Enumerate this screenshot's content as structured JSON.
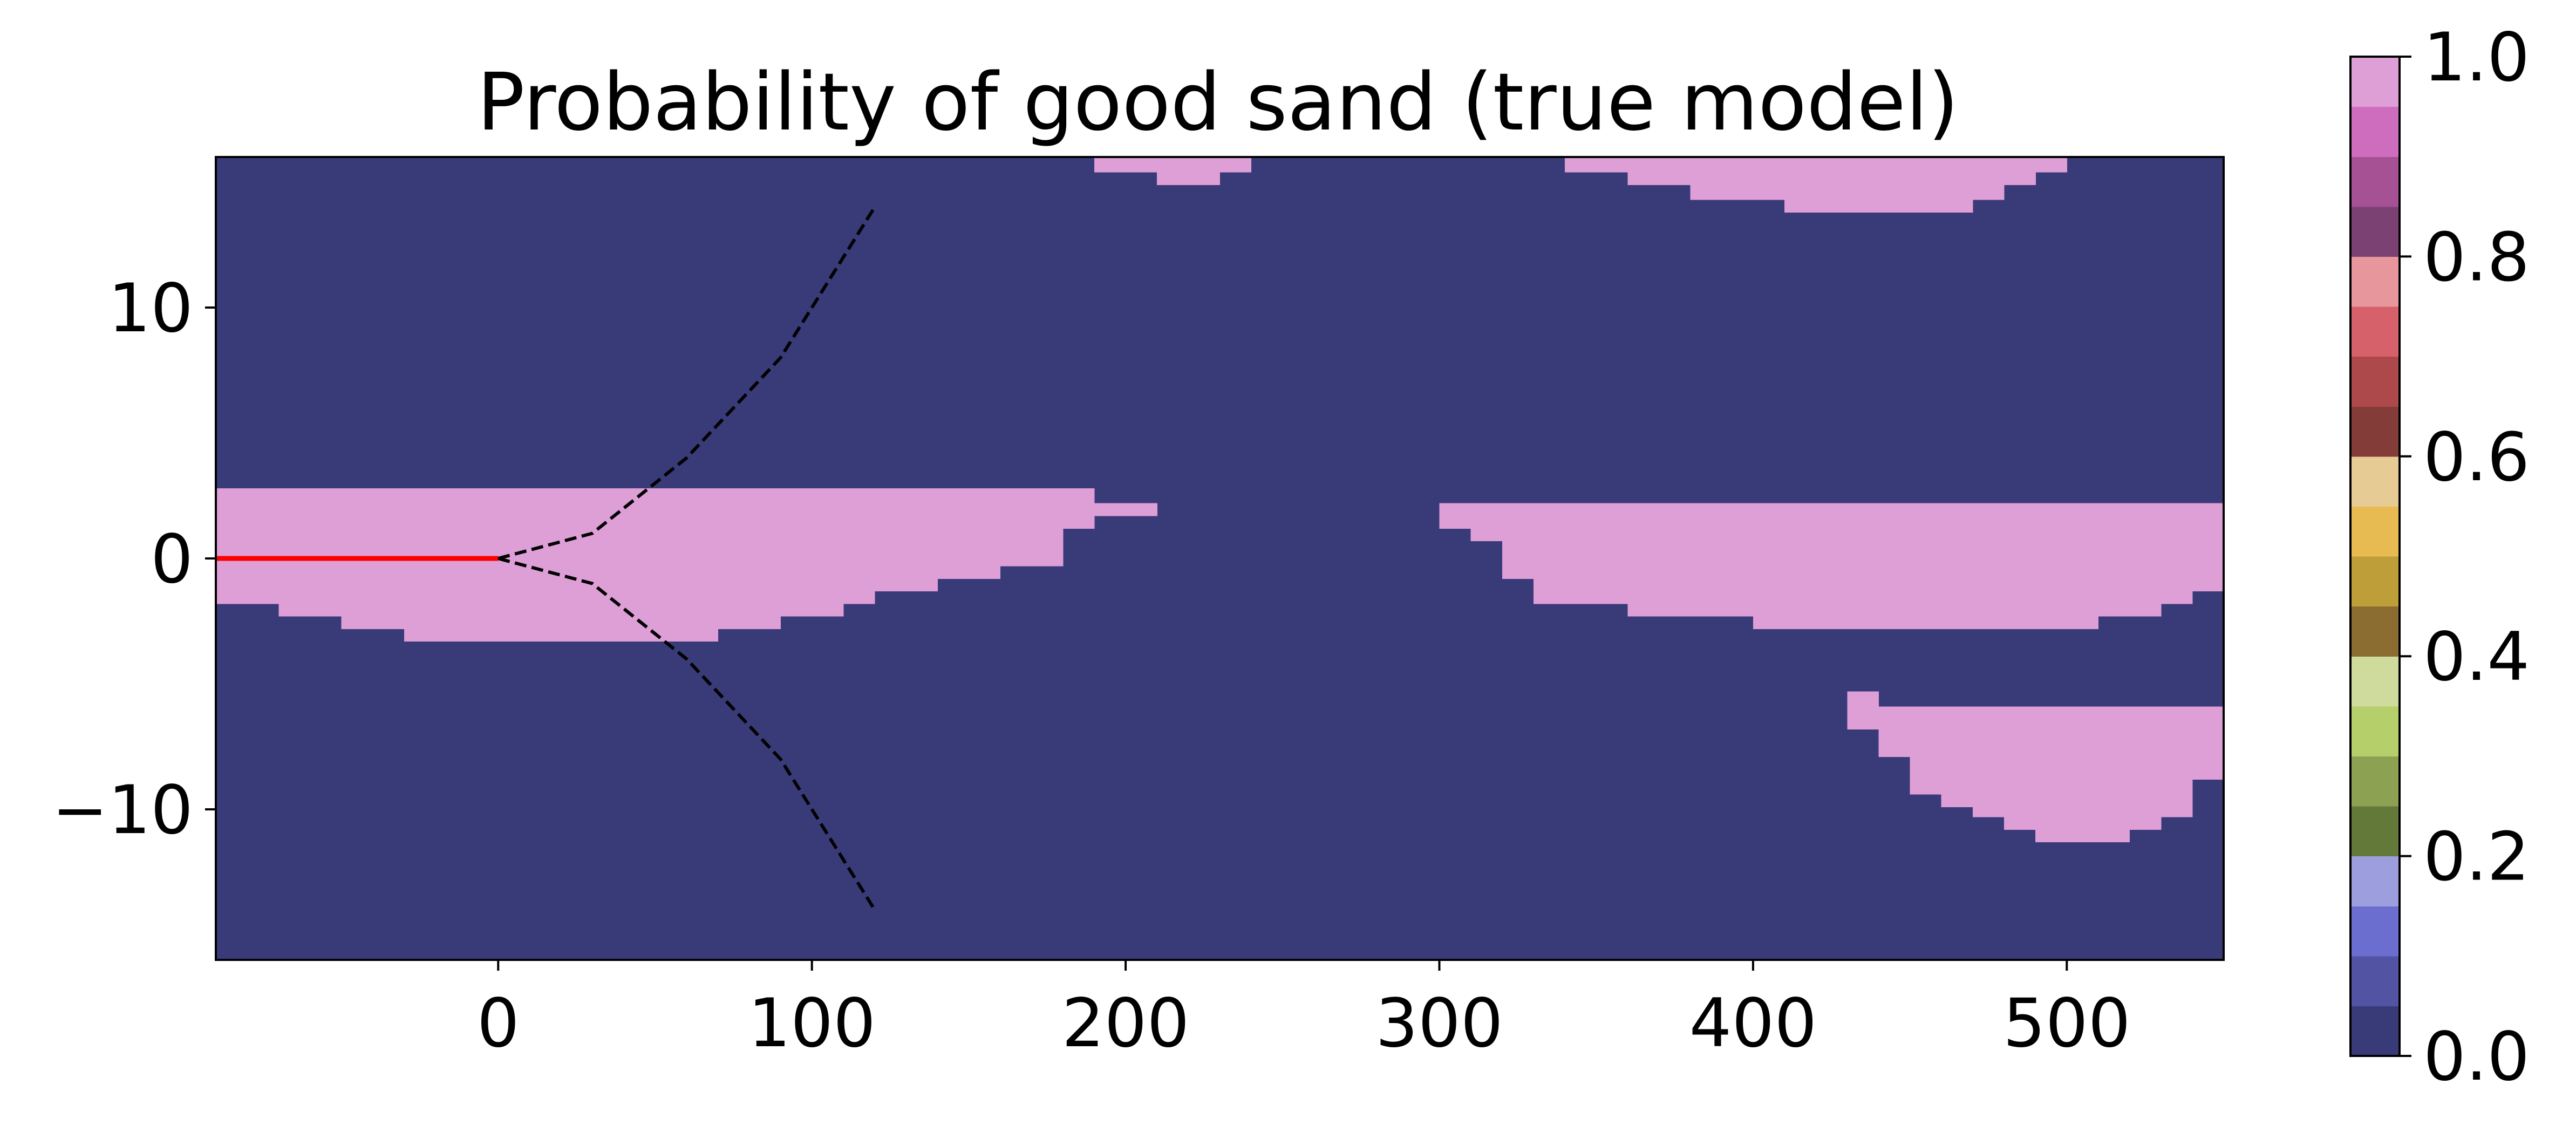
{
  "chart_data": {
    "type": "heatmap",
    "title": "Probability of good sand (true model)",
    "xlabel": "",
    "ylabel": "",
    "xlim": [
      -90,
      550
    ],
    "ylim": [
      -16,
      16
    ],
    "x_ticks": [
      0,
      100,
      200,
      300,
      400,
      500
    ],
    "x_tick_labels": [
      "0",
      "100",
      "200",
      "300",
      "400",
      "500"
    ],
    "y_ticks": [
      10,
      0,
      -10
    ],
    "y_tick_labels": [
      "10",
      "0",
      "−10"
    ],
    "grid": false,
    "background_value": 0.0,
    "background_color": "#393b79",
    "good_sand_value": 1.0,
    "good_sand_color": "#de9ed6",
    "colormap": "tab20b",
    "colormap_colors": [
      "#393b79",
      "#5254a3",
      "#6b6ecf",
      "#9c9ede",
      "#637939",
      "#8ca252",
      "#b5cf6b",
      "#cedb9c",
      "#8c6d31",
      "#bd9e39",
      "#e7ba52",
      "#e7cb94",
      "#843c39",
      "#ad494a",
      "#d6616b",
      "#e7969c",
      "#7b4173",
      "#a55194",
      "#ce6dbd",
      "#de9ed6"
    ],
    "colorbar_range": [
      0.0,
      1.0
    ],
    "colorbar_ticks": [
      0.0,
      0.2,
      0.4,
      0.6,
      0.8,
      1.0
    ],
    "colorbar_tick_labels": [
      "0.0",
      "0.2",
      "0.4",
      "0.6",
      "0.8",
      "1.0"
    ],
    "regions": [
      {
        "name": "left-sand-body",
        "value": 1.0,
        "x_start": -90,
        "x_end": 210,
        "upper_steps": [
          [
            -90,
            200,
            2.8
          ],
          [
            200,
            210,
            2.2
          ]
        ],
        "lower_steps": [
          [
            -90,
            -70,
            -1.8
          ],
          [
            -70,
            -50,
            -2.3
          ],
          [
            -50,
            -30,
            -2.8
          ],
          [
            -30,
            70,
            -3.3
          ],
          [
            70,
            90,
            -2.8
          ],
          [
            90,
            110,
            -2.3
          ],
          [
            110,
            120,
            -1.8
          ],
          [
            120,
            140,
            -1.3
          ],
          [
            140,
            160,
            -0.8
          ],
          [
            160,
            180,
            -0.3
          ],
          [
            180,
            190,
            1.2
          ],
          [
            190,
            210,
            1.7
          ]
        ]
      },
      {
        "name": "top-sand-small",
        "value": 1.0,
        "steps": [
          [
            190,
            210,
            15.4,
            16
          ],
          [
            210,
            230,
            14.9,
            16
          ],
          [
            230,
            240,
            15.4,
            16
          ]
        ]
      },
      {
        "name": "top-sand-large",
        "value": 1.0,
        "steps": [
          [
            340,
            360,
            15.4,
            16
          ],
          [
            360,
            380,
            14.9,
            16
          ],
          [
            380,
            410,
            14.3,
            16
          ],
          [
            410,
            470,
            13.8,
            16
          ],
          [
            470,
            480,
            14.3,
            16
          ],
          [
            480,
            490,
            14.9,
            16
          ],
          [
            490,
            500,
            15.4,
            16
          ]
        ]
      },
      {
        "name": "right-sand-body",
        "value": 1.0,
        "x_start": 300,
        "x_end": 550,
        "upper": 2.2,
        "lower_steps": [
          [
            300,
            310,
            1.2
          ],
          [
            310,
            320,
            0.7
          ],
          [
            320,
            330,
            -0.8
          ],
          [
            330,
            340,
            -1.8
          ],
          [
            340,
            360,
            -1.8
          ],
          [
            360,
            400,
            -2.3
          ],
          [
            400,
            510,
            -2.8
          ],
          [
            510,
            530,
            -2.3
          ],
          [
            530,
            540,
            -1.8
          ],
          [
            540,
            550,
            -1.3
          ]
        ]
      },
      {
        "name": "lower-right-sand-body",
        "value": 1.0,
        "steps": [
          [
            430,
            440,
            -6.8,
            -5.3
          ],
          [
            440,
            450,
            -7.9,
            -5.9
          ],
          [
            450,
            460,
            -9.4,
            -5.9
          ],
          [
            460,
            470,
            -9.9,
            -5.9
          ],
          [
            470,
            480,
            -10.3,
            -5.9
          ],
          [
            480,
            490,
            -10.8,
            -5.9
          ],
          [
            490,
            520,
            -11.3,
            -5.9
          ],
          [
            520,
            530,
            -10.8,
            -5.9
          ],
          [
            530,
            540,
            -10.3,
            -5.9
          ],
          [
            540,
            550,
            -8.8,
            -5.9
          ]
        ]
      }
    ],
    "series": [
      {
        "color": "#ff0000",
        "style": "solid",
        "x": [
          -90,
          0
        ],
        "y": [
          0,
          0
        ]
      },
      {
        "color": "#000000",
        "style": "dashed",
        "x": [
          0,
          30,
          60,
          90,
          120
        ],
        "y": [
          0,
          1,
          4,
          8,
          14
        ]
      },
      {
        "color": "#000000",
        "style": "dashed",
        "x": [
          0,
          30,
          60,
          90,
          120
        ],
        "y": [
          0,
          -1,
          -4,
          -8,
          -14
        ]
      }
    ]
  }
}
